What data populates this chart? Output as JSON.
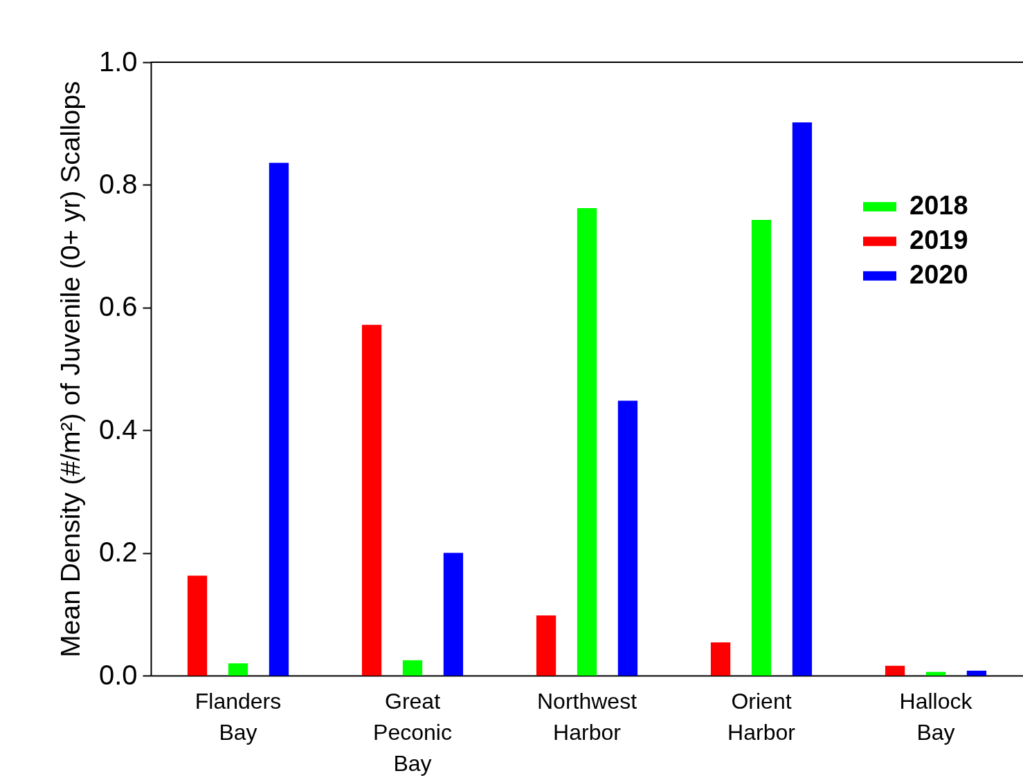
{
  "chart_data": {
    "type": "bar",
    "ylabel": "Mean Density (#/m²) of Juvenile (0+ yr) Scallops",
    "categories": [
      "Flanders Bay",
      "Great Peconic Bay",
      "Northwest Harbor",
      "Orient Harbor",
      "Hallock Bay"
    ],
    "series": [
      {
        "name": "2019",
        "color": "#ff0000",
        "values": [
          0.163,
          0.572,
          0.098,
          0.054,
          0.016
        ]
      },
      {
        "name": "2018",
        "color": "#00ff00",
        "values": [
          0.02,
          0.025,
          0.762,
          0.743,
          0.006
        ]
      },
      {
        "name": "2020",
        "color": "#0000ff",
        "values": [
          0.836,
          0.2,
          0.448,
          0.902,
          0.008
        ]
      }
    ],
    "ylim": [
      0,
      1.0
    ],
    "yticks": [
      {
        "value": 0,
        "label": "0.0"
      },
      {
        "value": 0.2,
        "label": "0.2"
      },
      {
        "value": 0.4,
        "label": "0.4"
      },
      {
        "value": 0.6,
        "label": "0.6"
      },
      {
        "value": 0.8,
        "label": "0.8"
      },
      {
        "value": 1.0,
        "label": "1.0"
      }
    ],
    "grid": false,
    "legend": "top right"
  }
}
